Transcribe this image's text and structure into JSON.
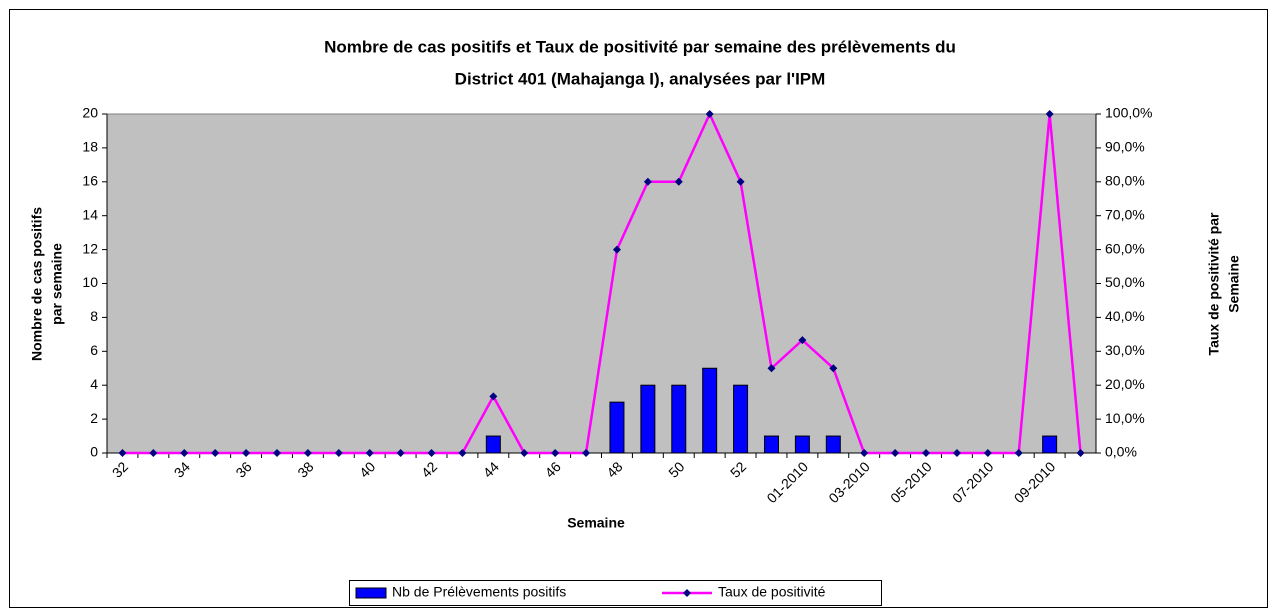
{
  "chart_data": {
    "type": "bar_line",
    "title": [
      "Nombre de cas positifs et Taux de positivité par semaine des prélèvements du",
      "District 401 (Mahajanga I), analysées par l'IPM"
    ],
    "x_label": "Semaine",
    "y_label": [
      "Nombre de cas positifs",
      "par semaine"
    ],
    "y2_label": [
      "Taux de positivité par",
      "Semaine"
    ],
    "categories": [
      "32",
      null,
      "34",
      null,
      "36",
      null,
      "38",
      null,
      "40",
      null,
      "42",
      null,
      "44",
      null,
      "46",
      null,
      "48",
      null,
      "50",
      null,
      "52",
      null,
      "01-2010",
      null,
      "03-2010",
      null,
      "05-2010",
      null,
      "07-2010",
      null,
      "09-2010",
      null
    ],
    "series": [
      {
        "name": "Nb de Prélèvements positifs",
        "type": "bar",
        "color": "#0000ff",
        "values": [
          0,
          0,
          0,
          0,
          0,
          0,
          0,
          0,
          0,
          0,
          0,
          0,
          1,
          0,
          0,
          0,
          3,
          4,
          4,
          5,
          4,
          1,
          1,
          1,
          0,
          0,
          0,
          0,
          0,
          0,
          1,
          0
        ]
      },
      {
        "name": "Taux de positivité",
        "type": "line",
        "axis": "y2",
        "color": "#ff00ff",
        "marker_color": "#000080",
        "values": [
          0,
          0,
          0,
          0,
          0,
          0,
          0,
          0,
          0,
          0,
          0,
          0,
          16.7,
          0,
          0,
          0,
          60,
          80,
          80,
          100,
          80,
          25,
          33.3,
          25,
          0,
          0,
          0,
          0,
          0,
          0,
          100,
          0
        ]
      }
    ],
    "ylim": [
      0,
      20
    ],
    "yticks": [
      0,
      2,
      4,
      6,
      8,
      10,
      12,
      14,
      16,
      18,
      20
    ],
    "y2lim": [
      0,
      100
    ],
    "y2ticks": [
      {
        "value": 0,
        "label": "0,0%"
      },
      {
        "value": 10,
        "label": "10,0%"
      },
      {
        "value": 20,
        "label": "20,0%"
      },
      {
        "value": 30,
        "label": "30,0%"
      },
      {
        "value": 40,
        "label": "40,0%"
      },
      {
        "value": 50,
        "label": "50,0%"
      },
      {
        "value": 60,
        "label": "60,0%"
      },
      {
        "value": 70,
        "label": "70,0%"
      },
      {
        "value": 80,
        "label": "80,0%"
      },
      {
        "value": 90,
        "label": "90,0%"
      },
      {
        "value": 100,
        "label": "100,0%"
      }
    ],
    "plot_background": "#c0c0c0",
    "legend": "bottom"
  }
}
